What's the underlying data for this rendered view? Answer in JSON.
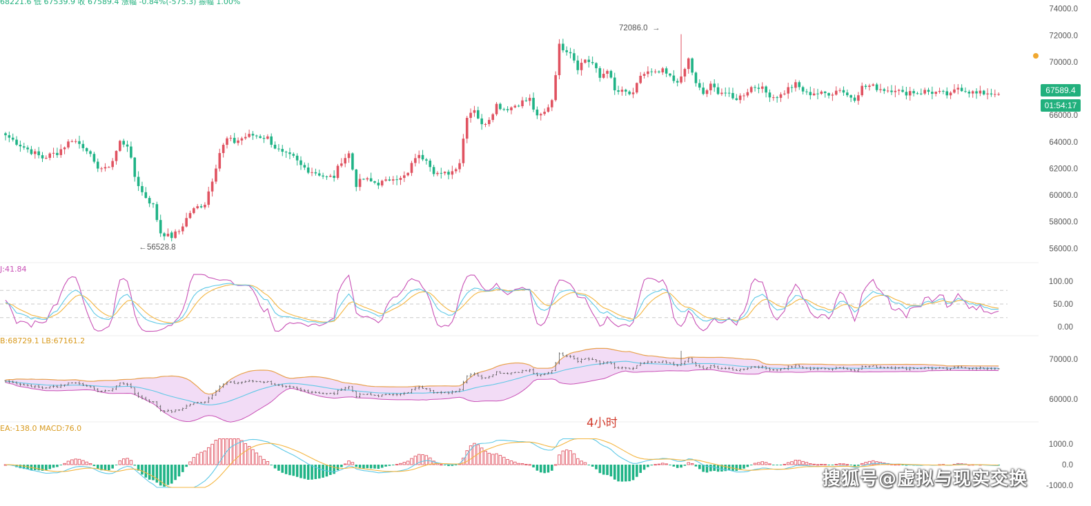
{
  "header": {
    "ohlc_line": "68221.6 低 67539.9 收 67589.4 涨幅 -0.84%(-575.3) 振幅 1.00%",
    "kdj_label": "J:41.84",
    "boll_label": "B:68729.1  LB:67161.2",
    "macd_label": "EA:-138.0  MACD:76.0"
  },
  "price_badge": {
    "price": "67589.4",
    "countdown": "01:54:17"
  },
  "annotations": {
    "high": "72086.0",
    "low": "56528.8",
    "period": "4小时"
  },
  "watermark": "搜狐号@虚拟与现实交换",
  "colors": {
    "up": "#e05260",
    "down": "#1fb386",
    "k": "#f4b53f",
    "d": "#5cc8e6",
    "j": "#c84fb5",
    "boll_fill": "#f2dcf6",
    "boll_band": "#e8a04a",
    "boll_mid": "#5cc8e6"
  },
  "axes": {
    "price_ticks": [
      "74000.0",
      "72000.0",
      "70000.0",
      "68000.0",
      "66000.0",
      "64000.0",
      "62000.0",
      "60000.0",
      "58000.0",
      "56000.0"
    ],
    "kdj_ticks": [
      "100.00",
      "50.00",
      "0.00"
    ],
    "boll_ticks": [
      "70000.0",
      "60000.0"
    ],
    "macd_ticks": [
      "1000.0",
      "0.0",
      "-1000.0"
    ]
  },
  "chart_data": {
    "type": "candlestick",
    "timeframe": "4小时",
    "price_range": [
      55500,
      74500
    ],
    "kdj_range": [
      -10,
      115
    ],
    "macd_range": [
      -1100,
      1250
    ],
    "anchors_x": [
      0,
      5,
      10,
      14,
      18,
      22,
      24,
      27,
      29,
      31,
      33,
      35,
      37,
      40,
      42,
      45,
      47,
      50,
      52,
      54,
      56,
      58,
      60,
      62,
      65,
      67,
      69,
      71,
      73,
      75,
      78,
      80,
      82,
      85,
      87,
      89,
      91,
      93,
      95,
      97,
      99,
      101,
      103,
      105,
      107,
      109,
      111,
      114,
      116,
      118,
      121,
      123,
      125,
      127,
      129,
      131,
      133,
      135,
      137,
      139,
      142,
      144,
      146,
      148,
      150,
      153,
      155,
      157,
      159,
      161,
      163,
      165,
      168,
      170,
      172,
      174,
      176,
      178,
      181,
      183,
      185,
      187,
      189,
      191,
      193,
      195,
      197,
      199,
      202,
      204,
      206,
      208,
      210,
      212,
      214,
      217,
      219,
      221,
      224,
      226,
      228,
      230,
      232,
      234,
      237,
      239,
      241,
      243,
      245,
      247,
      249,
      252,
      254,
      256,
      258,
      261,
      263,
      266,
      268,
      269
    ],
    "anchors_price": [
      64500,
      63600,
      62800,
      63200,
      64200,
      63500,
      62300,
      61900,
      62600,
      64000,
      63800,
      61400,
      60200,
      59200,
      57200,
      56900,
      57300,
      58700,
      59100,
      59400,
      61200,
      63200,
      64200,
      64000,
      64400,
      64500,
      64400,
      64300,
      63600,
      63100,
      62800,
      62200,
      61900,
      61600,
      61300,
      61400,
      62600,
      63100,
      60800,
      61200,
      61000,
      60900,
      61000,
      61400,
      61200,
      61600,
      62900,
      62800,
      61800,
      61500,
      61800,
      62500,
      66000,
      66500,
      65200,
      65800,
      66800,
      66500,
      66600,
      66900,
      67200,
      65800,
      66200,
      67200,
      71200,
      70800,
      69600,
      70200,
      69900,
      68800,
      69500,
      67800,
      67700,
      67500,
      69000,
      69200,
      69100,
      69300,
      68600,
      68700,
      70200,
      68300,
      67600,
      68200,
      67800,
      67700,
      67200,
      67400,
      68100,
      68200,
      67700,
      67400,
      67500,
      68000,
      68300,
      67600,
      67700,
      67600,
      67700,
      68000,
      67500,
      67300,
      68100,
      68200,
      68000,
      67900,
      68000,
      67600,
      67800,
      67700,
      67800,
      67700,
      67600,
      67500,
      68100,
      67800,
      67600,
      67700,
      67589.4,
      67589.4
    ],
    "high_value": 72086.0,
    "low_value": 56528.8,
    "last_close": 67589.4,
    "boll": {
      "upper_last": 68729.1,
      "lower_last": 67161.2
    },
    "macd": {
      "dea_last": -138.0,
      "macd_last": 76.0
    },
    "kdj": {
      "j_last": 41.84,
      "reference_lines": [
        80,
        50,
        20
      ]
    }
  }
}
